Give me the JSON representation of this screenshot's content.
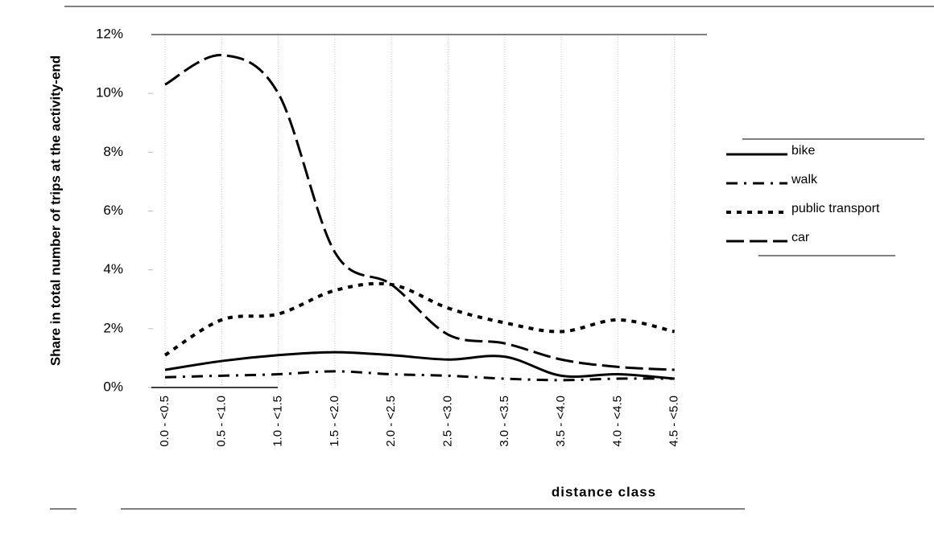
{
  "chart_data": {
    "type": "line",
    "y_label": "Share in total number of trips at the activity-end",
    "x_label": "distance class",
    "categories": [
      "0.0 - <0.5",
      "0.5 - <1.0",
      "1.0 - <1.5",
      "1.5 - <2.0",
      "2.0 - <2.5",
      "2.5 - <3.0",
      "3.0 - <3.5",
      "3.5 - <4.0",
      "4.0 - <4.5",
      "4.5 - <5.0"
    ],
    "ylim": [
      0,
      12
    ],
    "yticks": [
      {
        "value": 0,
        "label": "0%"
      },
      {
        "value": 2,
        "label": "2%"
      },
      {
        "value": 4,
        "label": "4%"
      },
      {
        "value": 6,
        "label": "6%"
      },
      {
        "value": 8,
        "label": "8%"
      },
      {
        "value": 10,
        "label": "10%"
      },
      {
        "value": 12,
        "label": "12%"
      }
    ],
    "grid": "x",
    "smooth": true,
    "series": [
      {
        "name": "bike",
        "color": "#000000",
        "dash": "solid",
        "values": [
          0.6,
          0.9,
          1.1,
          1.2,
          1.1,
          0.95,
          1.05,
          0.4,
          0.45,
          0.3
        ]
      },
      {
        "name": "walk",
        "color": "#000000",
        "dash": "dashdot",
        "values": [
          0.35,
          0.4,
          0.45,
          0.55,
          0.45,
          0.4,
          0.3,
          0.25,
          0.3,
          0.3
        ]
      },
      {
        "name": "public transport",
        "color": "#000000",
        "dash": "dot",
        "values": [
          1.1,
          2.3,
          2.5,
          3.3,
          3.5,
          2.7,
          2.2,
          1.9,
          2.3,
          1.9
        ]
      },
      {
        "name": "car",
        "color": "#000000",
        "dash": "longdash",
        "values": [
          10.3,
          11.3,
          10.0,
          4.6,
          3.5,
          1.8,
          1.5,
          0.95,
          0.7,
          0.6
        ]
      }
    ]
  }
}
